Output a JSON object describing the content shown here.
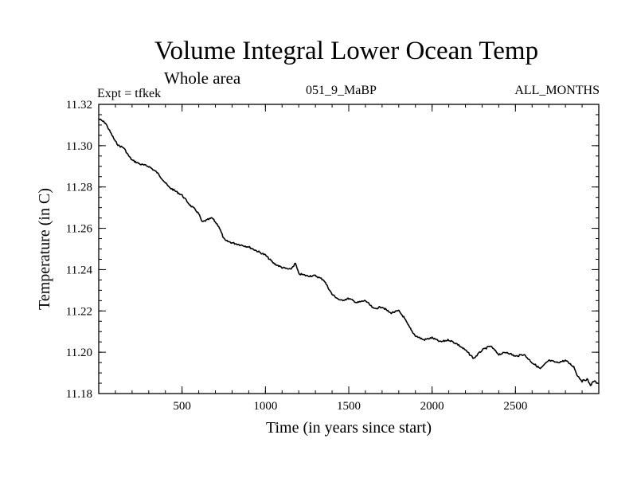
{
  "header": {
    "title": "Volume Integral Lower Ocean Temp",
    "subtitle": "Whole area",
    "experiment": "Expt = tfkek",
    "run_id": "051_9_MaBP",
    "period": "ALL_MONTHS"
  },
  "chart_data": {
    "type": "line",
    "title": "Volume Integral Lower Ocean Temp",
    "subtitle": "Whole area",
    "xlabel": "Time (in years since start)",
    "ylabel": "Temperature (in C)",
    "xlim": [
      0,
      3000
    ],
    "ylim": [
      11.18,
      11.32
    ],
    "xticks": [
      500,
      1000,
      1500,
      2000,
      2500
    ],
    "yticks": [
      11.18,
      11.2,
      11.22,
      11.24,
      11.26,
      11.28,
      11.3,
      11.32
    ],
    "ytick_labels": [
      "11.18",
      "11.20",
      "11.22",
      "11.24",
      "11.26",
      "11.28",
      "11.30",
      "11.32"
    ],
    "grid": false,
    "series": [
      {
        "color": "#000000",
        "x": [
          0,
          40,
          60,
          80,
          100,
          120,
          150,
          180,
          200,
          250,
          300,
          350,
          380,
          420,
          460,
          500,
          550,
          580,
          600,
          620,
          650,
          680,
          700,
          720,
          750,
          760,
          800,
          850,
          900,
          950,
          1000,
          1050,
          1100,
          1150,
          1180,
          1200,
          1250,
          1300,
          1350,
          1400,
          1450,
          1500,
          1550,
          1600,
          1650,
          1700,
          1750,
          1800,
          1830,
          1850,
          1880,
          1900,
          1950,
          2000,
          2050,
          2100,
          2150,
          2200,
          2250,
          2300,
          2350,
          2400,
          2450,
          2500,
          2550,
          2600,
          2650,
          2700,
          2750,
          2800,
          2850,
          2870,
          2900,
          2930,
          2950,
          2970,
          3000
        ],
        "y": [
          11.313,
          11.311,
          11.308,
          11.305,
          11.302,
          11.3,
          11.299,
          11.295,
          11.293,
          11.291,
          11.29,
          11.287,
          11.284,
          11.28,
          11.278,
          11.276,
          11.271,
          11.269,
          11.267,
          11.263,
          11.264,
          11.265,
          11.263,
          11.261,
          11.255,
          11.254,
          11.253,
          11.252,
          11.251,
          11.249,
          11.247,
          11.243,
          11.241,
          11.24,
          11.243,
          11.238,
          11.237,
          11.237,
          11.235,
          11.228,
          11.225,
          11.226,
          11.224,
          11.225,
          11.221,
          11.222,
          11.219,
          11.22,
          11.217,
          11.214,
          11.21,
          11.208,
          11.206,
          11.207,
          11.205,
          11.206,
          11.204,
          11.201,
          11.197,
          11.201,
          11.203,
          11.199,
          11.2,
          11.198,
          11.199,
          11.195,
          11.192,
          11.196,
          11.195,
          11.196,
          11.193,
          11.189,
          11.186,
          11.187,
          11.184,
          11.186,
          11.185
        ]
      }
    ]
  }
}
